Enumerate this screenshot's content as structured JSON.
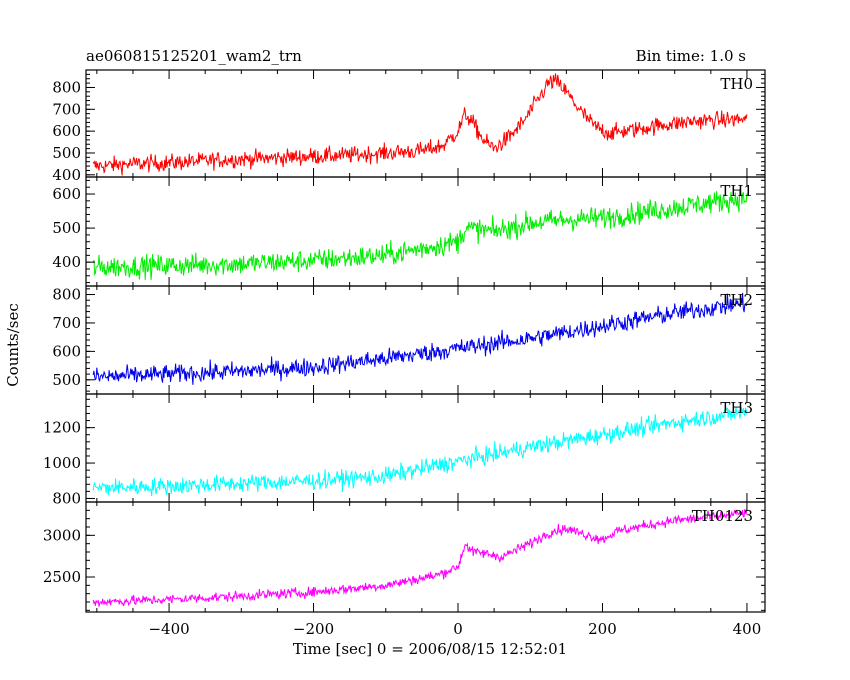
{
  "header": {
    "title": "ae060815125201_wam2_trn",
    "bin_time": "Bin time: 1.0 s"
  },
  "axes": {
    "ylabel": "Counts/sec",
    "xlabel": "Time [sec] 0 = 2006/08/15 12:52:01",
    "x_ticks": [
      "−400",
      "−200",
      "0",
      "200",
      "400"
    ]
  },
  "chart_data": [
    {
      "type": "line",
      "name": "TH0",
      "color": "#ff0000",
      "xlim": [
        -515,
        425
      ],
      "ylim": [
        390,
        880
      ],
      "yticks": [
        400,
        500,
        600,
        700,
        800
      ],
      "ytick_labels": [
        "400",
        "500",
        "600",
        "700",
        "800"
      ],
      "x": [
        -500,
        -450,
        -400,
        -350,
        -300,
        -250,
        -200,
        -150,
        -100,
        -50,
        -20,
        0,
        10,
        20,
        35,
        50,
        70,
        90,
        110,
        125,
        135,
        150,
        170,
        190,
        210,
        230,
        250,
        275,
        300,
        325,
        350,
        375,
        400
      ],
      "y": [
        440,
        450,
        455,
        465,
        472,
        478,
        485,
        490,
        500,
        510,
        535,
        600,
        680,
        640,
        560,
        520,
        570,
        640,
        740,
        820,
        830,
        780,
        690,
        620,
        590,
        600,
        610,
        625,
        635,
        645,
        650,
        652,
        655
      ],
      "noise": 35
    },
    {
      "type": "line",
      "name": "TH1",
      "color": "#00ee00",
      "xlim": [
        -515,
        425
      ],
      "ylim": [
        330,
        650
      ],
      "yticks": [
        400,
        500,
        600
      ],
      "ytick_labels": [
        "400",
        "500",
        "600"
      ],
      "x": [
        -500,
        -400,
        -300,
        -200,
        -100,
        -50,
        0,
        10,
        50,
        100,
        150,
        200,
        250,
        300,
        350,
        400
      ],
      "y": [
        385,
        390,
        395,
        405,
        420,
        440,
        460,
        500,
        490,
        515,
        525,
        530,
        545,
        560,
        575,
        590
      ],
      "noise": 30
    },
    {
      "type": "line",
      "name": "TH2",
      "color": "#0000ee",
      "xlim": [
        -515,
        425
      ],
      "ylim": [
        450,
        830
      ],
      "yticks": [
        500,
        600,
        700,
        800
      ],
      "ytick_labels": [
        "500",
        "600",
        "700",
        "800"
      ],
      "x": [
        -500,
        -400,
        -300,
        -200,
        -100,
        0,
        100,
        200,
        300,
        400
      ],
      "y": [
        510,
        520,
        530,
        545,
        575,
        610,
        645,
        690,
        735,
        770
      ],
      "noise": 30
    },
    {
      "type": "line",
      "name": "TH3",
      "color": "#00ffff",
      "xlim": [
        -515,
        425
      ],
      "ylim": [
        780,
        1390
      ],
      "yticks": [
        800,
        1000,
        1200
      ],
      "ytick_labels": [
        "800",
        "1000",
        "1200"
      ],
      "x": [
        -500,
        -400,
        -300,
        -200,
        -100,
        -60,
        0,
        100,
        200,
        300,
        400
      ],
      "y": [
        860,
        870,
        885,
        900,
        925,
        960,
        1010,
        1090,
        1160,
        1230,
        1290
      ],
      "noise": 45
    },
    {
      "type": "line",
      "name": "TH0123",
      "color": "#ff00ff",
      "xlim": [
        -515,
        425
      ],
      "ylim": [
        2080,
        3400
      ],
      "yticks": [
        2500,
        3000
      ],
      "ytick_labels": [
        "2500",
        "3000"
      ],
      "x": [
        -500,
        -400,
        -300,
        -200,
        -100,
        -30,
        0,
        10,
        20,
        40,
        60,
        80,
        110,
        130,
        150,
        180,
        200,
        220,
        250,
        300,
        350,
        400
      ],
      "y": [
        2200,
        2230,
        2270,
        2320,
        2400,
        2520,
        2620,
        2900,
        2800,
        2780,
        2740,
        2820,
        2950,
        3050,
        3080,
        3000,
        2950,
        3050,
        3100,
        3180,
        3220,
        3270
      ],
      "noise": 55
    }
  ]
}
